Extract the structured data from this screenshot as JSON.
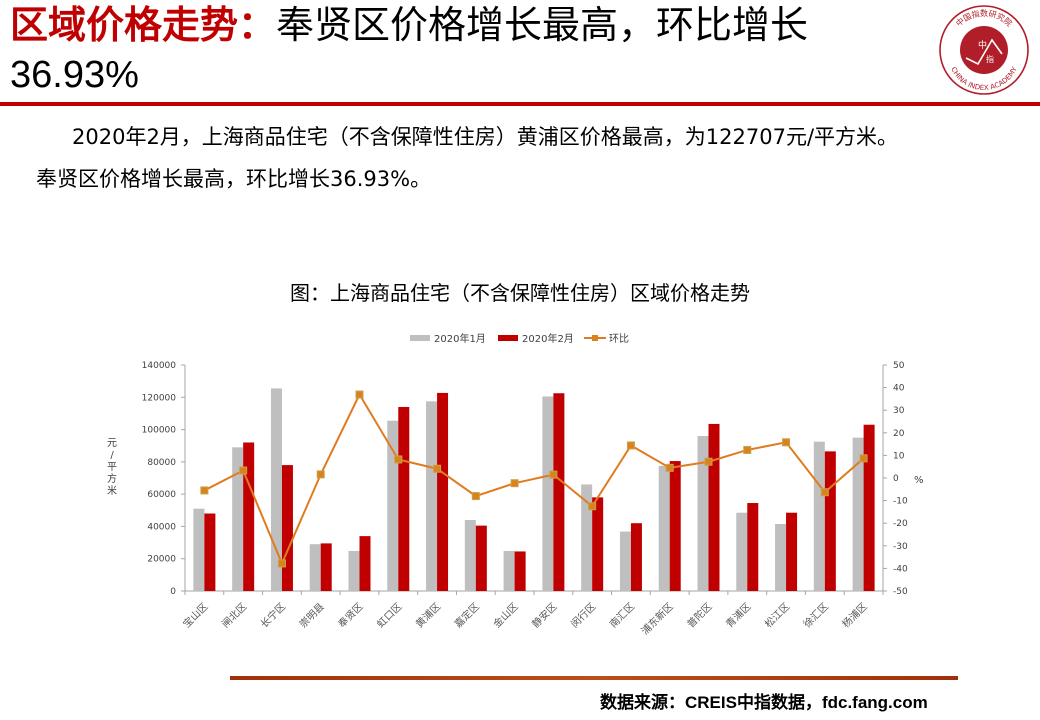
{
  "header": {
    "title_highlight": "区域价格走势：",
    "title_rest": "奉贤区价格增长最高，环比增长",
    "title_line2": "36.93%",
    "logo": {
      "icon": "china-index-academy-seal-icon",
      "center_text_top": "中",
      "center_text_bottom": "指",
      "ring_text_top": "中国指数研究院",
      "ring_text_bottom": "CHINA INDEX ACADEMY"
    }
  },
  "summary": {
    "line1": "2020年2月，上海商品住宅（不含保障性住房）黄浦区价格最高，为122707元/平方米。",
    "line2": "奉贤区价格增长最高，环比增长36.93%。"
  },
  "chart_title": "图：上海商品住宅（不含保障性住房）区域价格走势",
  "footer": {
    "source": "数据来源：CREIS中指数据，fdc.fang.com"
  },
  "colors": {
    "accent_red": "#c00000",
    "jan_bar": "#bfbfbf",
    "feb_bar": "#c00000",
    "mom_line": "#e07b20"
  },
  "chart_data": {
    "type": "bar",
    "title": "图：上海商品住宅（不含保障性住房）区域价格走势",
    "xlabel": "",
    "ylabel": "元/平方米",
    "y2label": "%",
    "ylim": [
      0,
      140000
    ],
    "y2lim": [
      -50,
      50
    ],
    "yticks": [
      0,
      20000,
      40000,
      60000,
      80000,
      100000,
      120000,
      140000
    ],
    "y2ticks": [
      -50,
      -40,
      -30,
      -20,
      -10,
      0,
      10,
      20,
      30,
      40,
      50
    ],
    "grid": false,
    "legend_position": "top-right",
    "categories": [
      "宝山区",
      "闸北区",
      "长宁区",
      "崇明县",
      "奉贤区",
      "虹口区",
      "黄浦区",
      "嘉定区",
      "金山区",
      "静安区",
      "闵行区",
      "南汇区",
      "浦东新区",
      "普陀区",
      "青浦区",
      "松江区",
      "徐汇区",
      "杨浦区"
    ],
    "series": [
      {
        "name": "2020年1月",
        "type": "bar",
        "axis": "left",
        "values": [
          51000,
          89000,
          125500,
          29000,
          24800,
          105500,
          117500,
          44000,
          24800,
          120500,
          66000,
          36800,
          77500,
          96000,
          48500,
          41500,
          92500,
          95000
        ]
      },
      {
        "name": "2020年2月",
        "type": "bar",
        "axis": "left",
        "values": [
          48000,
          92000,
          78000,
          29500,
          34000,
          114000,
          122707,
          40500,
          24500,
          122500,
          58000,
          42000,
          80500,
          103500,
          54500,
          48500,
          86500,
          103000
        ]
      },
      {
        "name": "环比",
        "type": "line",
        "axis": "right",
        "values": [
          -5.5,
          3.3,
          -37.8,
          1.6,
          36.93,
          8.2,
          4.1,
          -8.0,
          -2.3,
          1.5,
          -12.5,
          14.4,
          4.5,
          7.2,
          12.4,
          15.8,
          -6.3,
          8.7
        ]
      }
    ]
  }
}
